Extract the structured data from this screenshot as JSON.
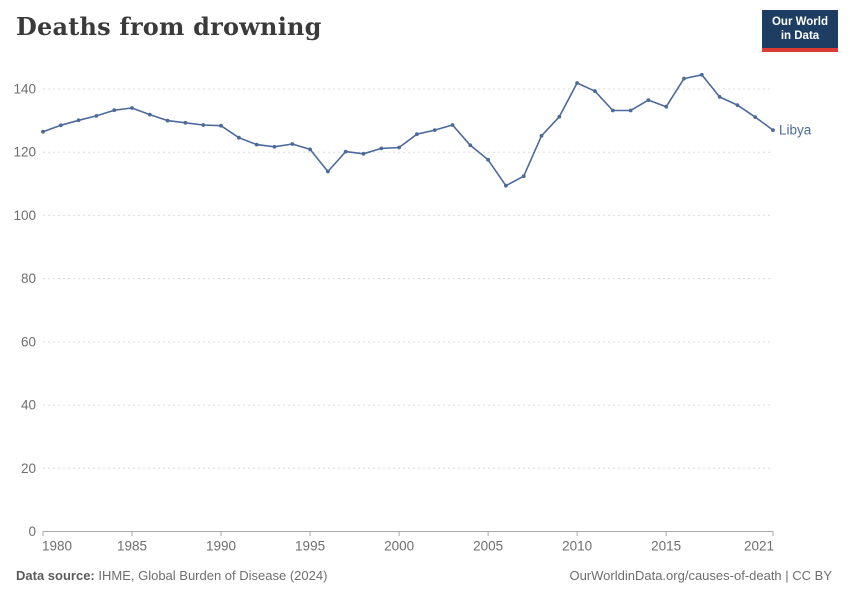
{
  "header": {
    "title": "Deaths from drowning",
    "logo": {
      "line1": "Our World",
      "line2": "in Data"
    }
  },
  "footer": {
    "source_label": "Data source:",
    "source_text": " IHME, Global Burden of Disease (2024)",
    "credit": "OurWorldinData.org/causes-of-death | CC BY"
  },
  "colors": {
    "line": "#4c6a9c",
    "series_label": "#4c6a9c",
    "grid": "#dcdcdc",
    "axis": "#a8a8a8",
    "tick_text": "#6e6e6e"
  },
  "chart_data": {
    "type": "line",
    "title": "Deaths from drowning",
    "xlabel": "",
    "ylabel": "",
    "xlim": [
      1980,
      2021
    ],
    "ylim": [
      0,
      140
    ],
    "x_ticks": [
      1980,
      1985,
      1990,
      1995,
      2000,
      2005,
      2010,
      2015,
      2021
    ],
    "y_ticks": [
      0,
      20,
      40,
      60,
      80,
      100,
      120,
      140
    ],
    "grid": "horizontal-dashed",
    "legend_position": "end-of-line-label",
    "series": [
      {
        "name": "Libya",
        "color": "#4c6a9c",
        "years": [
          1980,
          1981,
          1982,
          1983,
          1984,
          1985,
          1986,
          1987,
          1988,
          1989,
          1990,
          1991,
          1992,
          1993,
          1994,
          1995,
          1996,
          1997,
          1998,
          1999,
          2000,
          2001,
          2002,
          2003,
          2004,
          2005,
          2006,
          2007,
          2008,
          2009,
          2010,
          2011,
          2012,
          2013,
          2014,
          2015,
          2016,
          2017,
          2018,
          2019,
          2020,
          2021
        ],
        "values": [
          126.5,
          128.5,
          130.1,
          131.5,
          133.3,
          134.0,
          131.9,
          130.0,
          129.3,
          128.6,
          128.4,
          124.6,
          122.4,
          121.7,
          122.6,
          120.9,
          113.9,
          120.2,
          119.5,
          121.2,
          121.5,
          125.7,
          127.0,
          128.6,
          122.2,
          117.6,
          109.4,
          112.4,
          125.2,
          131.2,
          141.9,
          139.3,
          133.2,
          133.2,
          136.5,
          134.4,
          143.3,
          144.5,
          137.5,
          134.9,
          131.1,
          127.0
        ]
      }
    ]
  }
}
